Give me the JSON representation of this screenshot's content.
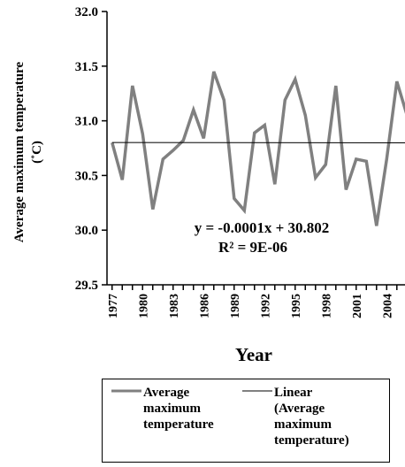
{
  "chart_data": {
    "type": "line",
    "title": "",
    "ylabel_line1": "Average maximum temperature",
    "ylabel_line2": "(˚C)",
    "xlabel": "Year",
    "ylim": [
      29.5,
      32.0
    ],
    "y_ticks": [
      "29.5",
      "30.0",
      "30.5",
      "31.0",
      "31.5",
      "32.0"
    ],
    "x_tick_labels": [
      "1977",
      "1980",
      "1983",
      "1986",
      "1989",
      "1992",
      "1995",
      "1998",
      "2001",
      "2004"
    ],
    "x_tick_years": [
      1977,
      1980,
      1983,
      1986,
      1989,
      1992,
      1995,
      1998,
      2001,
      2004
    ],
    "x_range": [
      1976.5,
      2005.8
    ],
    "grid": false,
    "series": [
      {
        "name": "Average maximum temperature",
        "color": "#808080",
        "x": [
          1977,
          1978,
          1979,
          1980,
          1981,
          1982,
          1983,
          1984,
          1985,
          1986,
          1987,
          1988,
          1989,
          1990,
          1991,
          1992,
          1993,
          1994,
          1995,
          1996,
          1997,
          1998,
          1999,
          2000,
          2001,
          2002,
          2003,
          2004,
          2005,
          2006
        ],
        "values": [
          30.8,
          30.46,
          31.32,
          30.88,
          30.19,
          30.65,
          30.73,
          30.82,
          31.1,
          30.84,
          31.45,
          31.19,
          30.29,
          30.18,
          30.89,
          30.96,
          30.42,
          31.19,
          31.38,
          31.05,
          30.48,
          30.6,
          31.32,
          30.37,
          30.65,
          30.63,
          30.04,
          30.65,
          31.36,
          31.05
        ]
      },
      {
        "name": "Linear (Average maximum temperature)",
        "color": "#000000",
        "trend_slope": -0.0001,
        "trend_intercept": 30.802
      }
    ],
    "annotations": [
      "y = -0.0001x + 30.802",
      "R² = 9E-06"
    ],
    "legend_position": "bottom"
  },
  "legend": {
    "item1_lines": [
      "Average",
      "maximum",
      "temperature"
    ],
    "item2_lines": [
      "Linear",
      "(Average",
      "maximum",
      "temperature)"
    ]
  }
}
